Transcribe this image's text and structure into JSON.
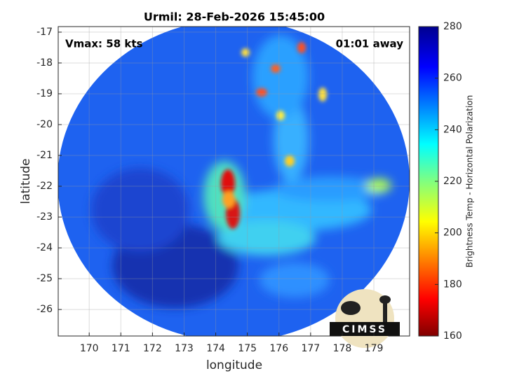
{
  "chart_data": {
    "type": "image",
    "title": "Urmil: 28-Feb-2026 15:45:00",
    "xlabel": "longitude",
    "ylabel": "latitude",
    "annotations": [
      "Vmax: 58 kts",
      "01:01 away"
    ],
    "xlim": [
      169.02,
      180.13
    ],
    "xticks": [
      170,
      171,
      172,
      173,
      174,
      175,
      176,
      177,
      178,
      179
    ],
    "ylim": [
      -26.86,
      -16.82
    ],
    "yticks": [
      -17,
      -18,
      -19,
      -20,
      -21,
      -22,
      -23,
      -24,
      -25,
      -26
    ],
    "grid": true,
    "colorbar_label": "Brightness Temp - Horizontal Polarization",
    "clim": [
      160,
      280
    ],
    "cticks": [
      160,
      180,
      200,
      220,
      240,
      260,
      280
    ],
    "colormap": "jet"
  },
  "logo_text": "CIMSS"
}
